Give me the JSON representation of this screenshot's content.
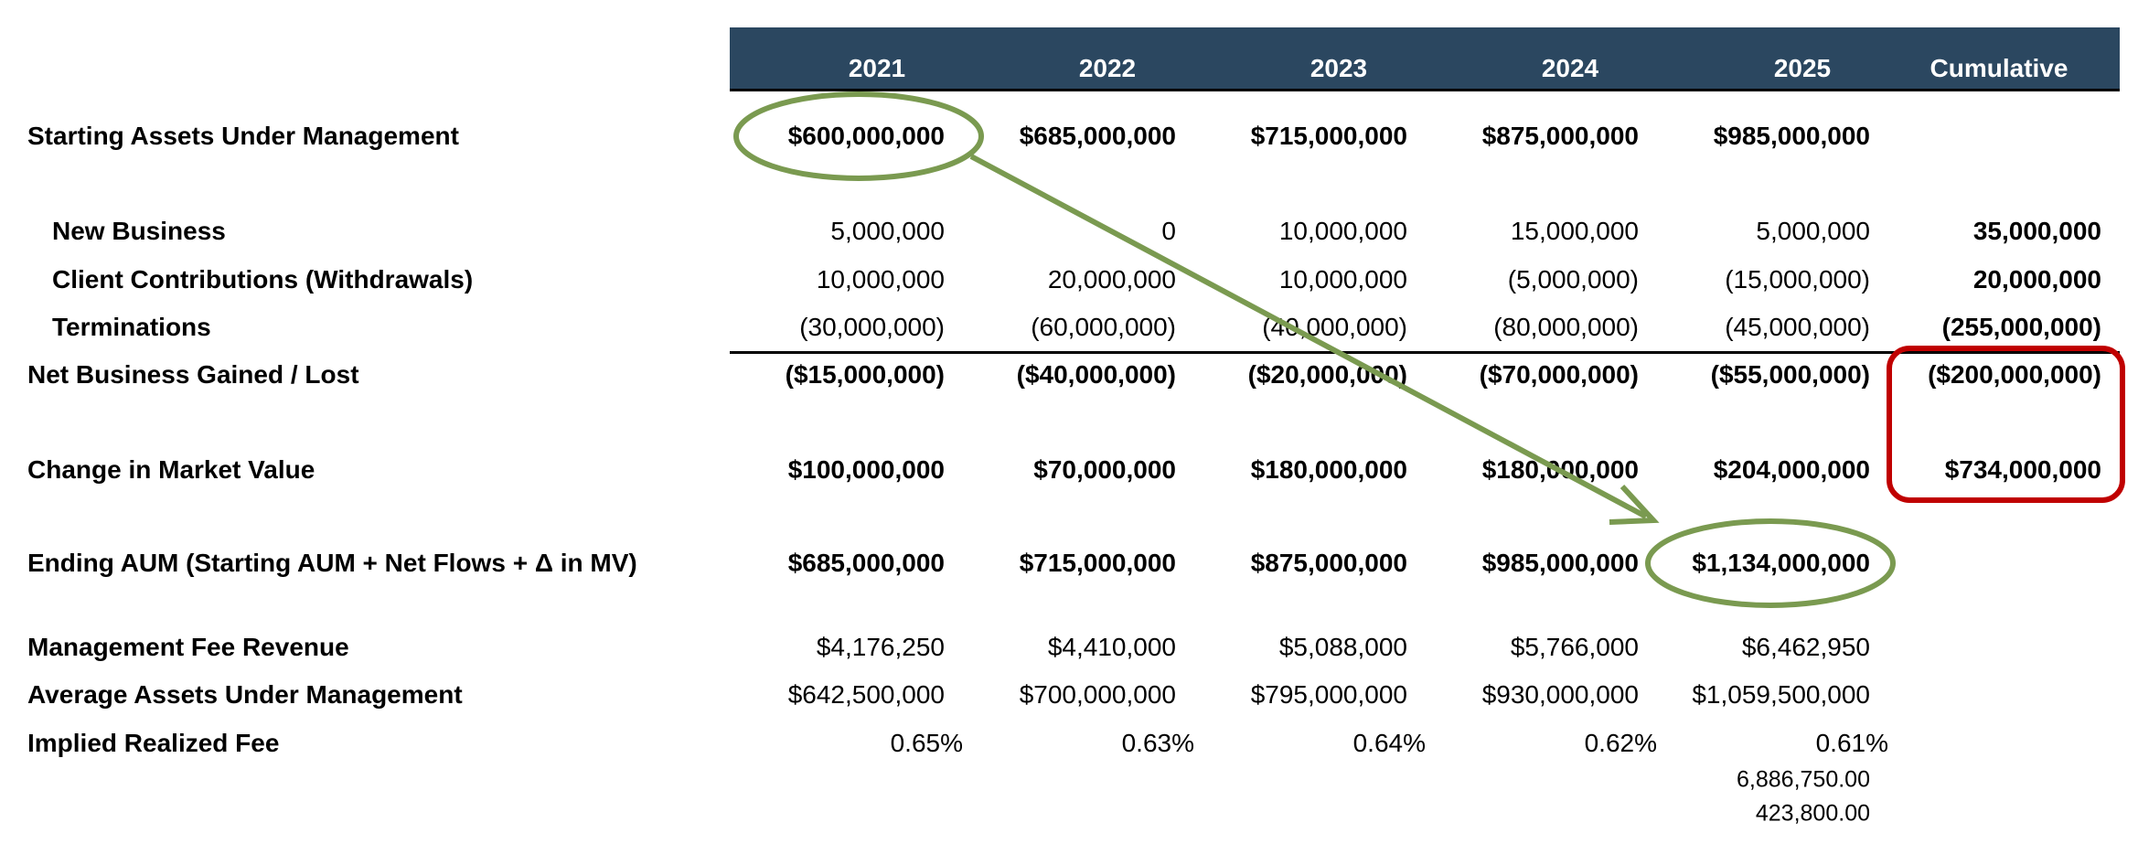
{
  "header": {
    "columns": [
      "2021",
      "2022",
      "2023",
      "2024",
      "2025",
      "Cumulative"
    ],
    "background": "#2b4760"
  },
  "rows": [
    {
      "label": "Starting Assets Under Management",
      "indent": false,
      "bold": true,
      "values": [
        "$600,000,000",
        "$685,000,000",
        "$715,000,000",
        "$875,000,000",
        "$985,000,000",
        ""
      ]
    },
    {
      "label": "New Business",
      "indent": true,
      "bold": false,
      "values": [
        "5,000,000",
        "0",
        "10,000,000",
        "15,000,000",
        "5,000,000",
        "35,000,000"
      ]
    },
    {
      "label": "Client Contributions (Withdrawals)",
      "indent": true,
      "bold": false,
      "values": [
        "10,000,000",
        "20,000,000",
        "10,000,000",
        "(5,000,000)",
        "(15,000,000)",
        "20,000,000"
      ]
    },
    {
      "label": "Terminations",
      "indent": true,
      "bold": false,
      "values": [
        "(30,000,000)",
        "(60,000,000)",
        "(40,000,000)",
        "(80,000,000)",
        "(45,000,000)",
        "(255,000,000)"
      ]
    },
    {
      "label": "Net Business Gained / Lost",
      "indent": false,
      "bold": true,
      "values": [
        "($15,000,000)",
        "($40,000,000)",
        "($20,000,000)",
        "($70,000,000)",
        "($55,000,000)",
        "($200,000,000)"
      ]
    },
    {
      "label": "Change in Market Value",
      "indent": false,
      "bold": true,
      "values": [
        "$100,000,000",
        "$70,000,000",
        "$180,000,000",
        "$180,000,000",
        "$204,000,000",
        "$734,000,000"
      ]
    },
    {
      "label": "Ending AUM (Starting AUM + Net Flows + Δ in MV)",
      "indent": false,
      "bold": true,
      "values": [
        "$685,000,000",
        "$715,000,000",
        "$875,000,000",
        "$985,000,000",
        "$1,134,000,000",
        ""
      ]
    },
    {
      "label": "Management Fee Revenue",
      "indent": false,
      "bold": false,
      "values": [
        "$4,176,250",
        "$4,410,000",
        "$5,088,000",
        "$5,766,000",
        "$6,462,950",
        ""
      ]
    },
    {
      "label": "Average Assets Under Management",
      "indent": false,
      "bold": false,
      "values": [
        "$642,500,000",
        "$700,000,000",
        "$795,000,000",
        "$930,000,000",
        "$1,059,500,000",
        ""
      ]
    },
    {
      "label": "Implied Realized Fee",
      "indent": false,
      "bold": false,
      "percent": true,
      "values": [
        "0.65%",
        "0.63%",
        "0.64%",
        "0.62%",
        "0.61%",
        ""
      ]
    }
  ],
  "extra_values": [
    "6,886,750.00",
    "423,800.00"
  ],
  "annotations": {
    "green": "#7a9a50",
    "red": "#c00000"
  }
}
